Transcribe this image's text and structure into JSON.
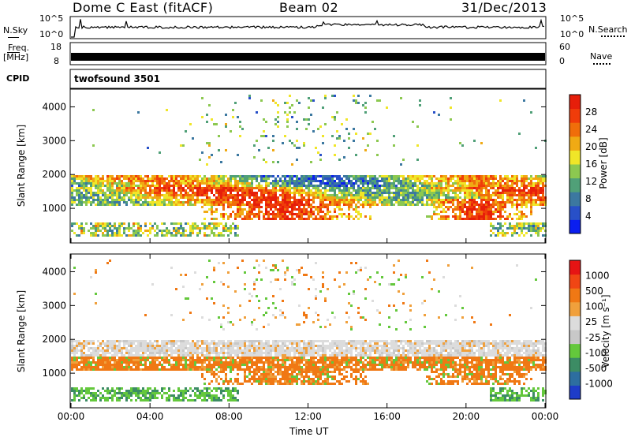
{
  "header": {
    "title": "Dome C East (fitACF)",
    "beam": "Beam 02",
    "date": "31/Dec/2013"
  },
  "noise_panel": {
    "left_label": "N.Sky",
    "right_label": "N.Search",
    "left_ticks": [
      "10^5",
      "10^0"
    ],
    "right_ticks": [
      "10^5",
      "10^0"
    ]
  },
  "freq_panel": {
    "left_label_line1": "Freq.",
    "left_label_line2": "[MHz]",
    "right_label": "Nave",
    "left_ticks": [
      "18",
      "8"
    ],
    "right_ticks": [
      "60",
      "0"
    ]
  },
  "cpid_panel": {
    "label": "CPID",
    "program": "twofsound  3501"
  },
  "colors": {
    "power_scale": [
      "#0a1ef0",
      "#2850c8",
      "#3c78a0",
      "#50a078",
      "#8cc850",
      "#f0e628",
      "#f0aa14",
      "#f06e0a",
      "#f03c0a",
      "#e61e0a"
    ],
    "velocity_scale": [
      "#1e3cc8",
      "#2d6ea0",
      "#3c8c64",
      "#64c83c",
      "#c8c8c8",
      "#dcdcdc",
      "#f0a03c",
      "#f07814",
      "#f04614",
      "#e61414"
    ]
  },
  "chart_data": [
    {
      "type": "heatmap",
      "name": "power",
      "xlabel": "",
      "ylabel": "Slant Range [km]",
      "y_ticks": [
        "1000",
        "2000",
        "3000",
        "4000"
      ],
      "ylim": [
        0,
        4500
      ],
      "colorbar_label": "Power [dB]",
      "colorbar_ticks": [
        "4",
        "8",
        "12",
        "16",
        "20",
        "24",
        "28"
      ],
      "colorbar_range": [
        0,
        30
      ]
    },
    {
      "type": "heatmap",
      "name": "velocity",
      "xlabel": "Time UT",
      "ylabel": "Slant Range [km]",
      "y_ticks": [
        "1000",
        "2000",
        "3000",
        "4000"
      ],
      "ylim": [
        0,
        4500
      ],
      "x_ticks": [
        "00:00",
        "04:00",
        "08:00",
        "12:00",
        "16:00",
        "20:00",
        "00:00"
      ],
      "colorbar_label": "Velocity [m s⁻¹]",
      "colorbar_ticks": [
        "1000",
        "500",
        "100",
        "25",
        "-25",
        "-100",
        "-500",
        "-1000"
      ]
    }
  ]
}
